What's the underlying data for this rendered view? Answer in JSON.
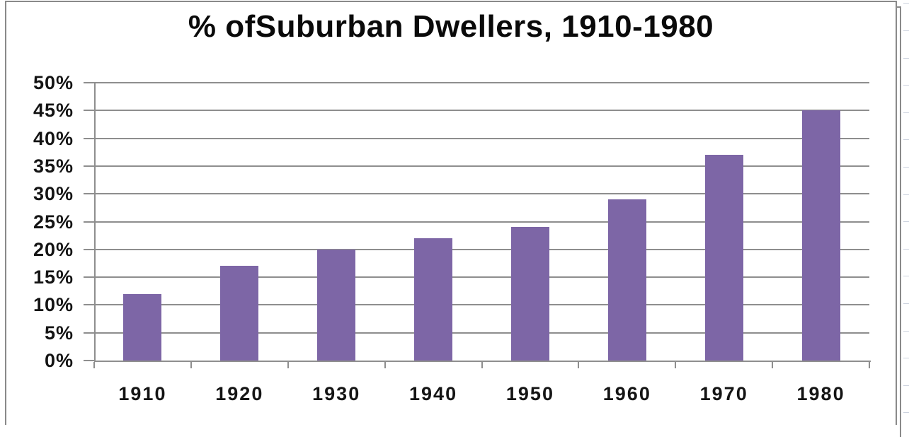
{
  "chart_data": {
    "type": "bar",
    "title": "% ofSuburban Dwellers, 1910-1980",
    "categories": [
      "1910",
      "1920",
      "1930",
      "1940",
      "1950",
      "1960",
      "1970",
      "1980"
    ],
    "values": [
      12,
      17,
      20,
      22,
      24,
      29,
      37,
      45
    ],
    "xlabel": "",
    "ylabel": "",
    "ylim": [
      0,
      50
    ],
    "ytick_step": 5,
    "ytick_labels": [
      "0%",
      "5%",
      "10%",
      "15%",
      "20%",
      "25%",
      "30%",
      "35%",
      "40%",
      "45%",
      "50%"
    ],
    "grid": true,
    "legend": "none"
  },
  "colors": {
    "bar": "#7D66A6",
    "gridline": "#8E8E8E",
    "axis": "#8E8E8E",
    "frame_border": "#8A8A8A",
    "excel_gridline": "#CCD2DE",
    "text": "#141414",
    "title_text": "#0A0A0A",
    "background": "#FFFFFF"
  }
}
